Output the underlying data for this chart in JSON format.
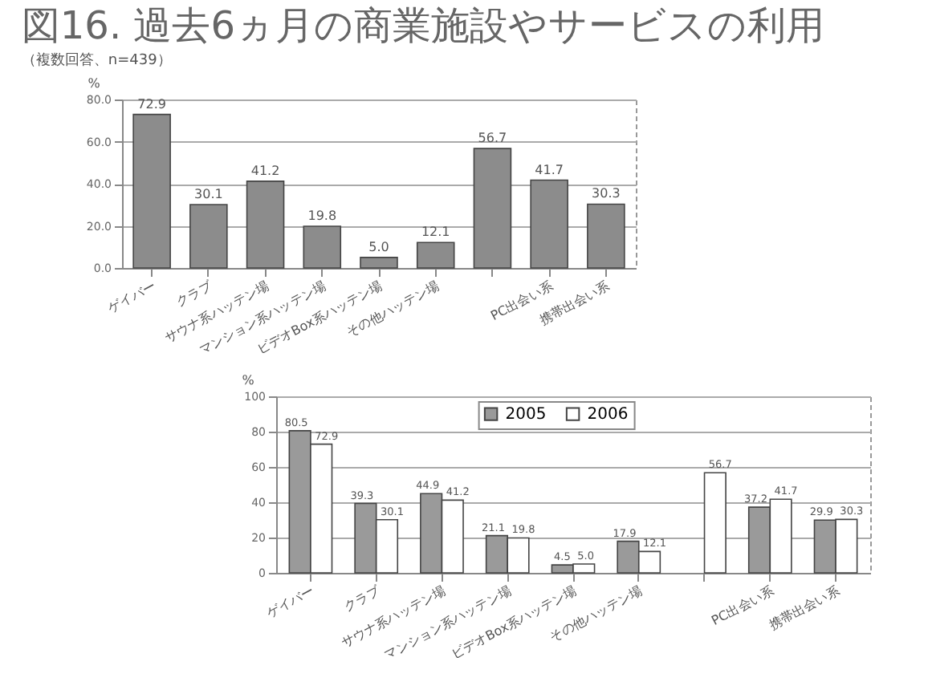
{
  "chart_data": [
    {
      "type": "bar",
      "title": "図16. 過去6ヵ月の商業施設やサービスの利用",
      "subtitle": "（複数回答、n=439）",
      "ylabel": "%",
      "categories": [
        "ゲイバー",
        "クラブ",
        "サウナ系ハッテン場",
        "マンション系ハッテン場",
        "ビデオBox系ハッテン場",
        "その他ハッテン場",
        null,
        "PC出会い系",
        "携帯出会い系"
      ],
      "series": [
        {
          "color": "#8c8c8c",
          "values": [
            72.9,
            30.1,
            41.2,
            19.8,
            5.0,
            12.1,
            56.7,
            41.7,
            30.3
          ]
        }
      ],
      "ylim": [
        0,
        80
      ],
      "yticks": [
        {
          "value": 0,
          "label": "0.0"
        },
        {
          "value": 20,
          "label": "20.0"
        },
        {
          "value": 40,
          "label": "40.0"
        },
        {
          "value": 60,
          "label": "60.0"
        },
        {
          "value": 80,
          "label": "80.0"
        }
      ],
      "grid": "y",
      "value_labels": [
        [
          "72.9",
          "30.1",
          "41.2",
          "19.8",
          "5.0",
          "12.1",
          "56.7",
          "41.7",
          "30.3"
        ]
      ]
    },
    {
      "type": "bar",
      "ylabel": "%",
      "categories": [
        "ゲイバー",
        "クラブ",
        "サウナ系ハッテン場",
        "マンション系ハッテン場",
        "ビデオBox系ハッテン場",
        "その他ハッテン場",
        null,
        "PC出会い系",
        "携帯出会い系"
      ],
      "series": [
        {
          "name": "2005",
          "color": "#9a9a9a",
          "values": [
            80.5,
            39.3,
            44.9,
            21.1,
            4.5,
            17.9,
            null,
            37.2,
            29.9
          ]
        },
        {
          "name": "2006",
          "color": "#ffffff",
          "values": [
            72.9,
            30.1,
            41.2,
            19.8,
            5.0,
            12.1,
            56.7,
            41.7,
            30.3
          ]
        }
      ],
      "ylim": [
        0,
        100
      ],
      "yticks": [
        0,
        20,
        40,
        60,
        80,
        100
      ],
      "grid": "y",
      "legend": "top",
      "value_labels": [
        [
          "80.5",
          "39.3",
          "44.9",
          "21.1",
          "4.5",
          "17.9",
          null,
          "37.2",
          "29.9"
        ],
        [
          "72.9",
          "30.1",
          "41.2",
          "19.8",
          "5.0",
          "12.1",
          "56.7",
          "41.7",
          "30.3"
        ]
      ]
    }
  ]
}
